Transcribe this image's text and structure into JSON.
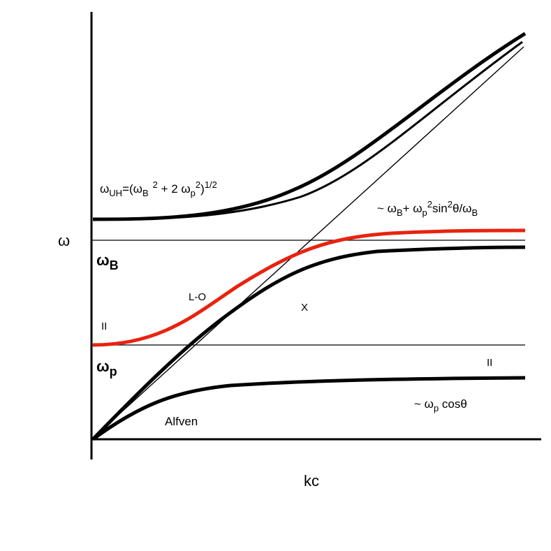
{
  "axes": {
    "y_label": "ω",
    "x_label": "kc"
  },
  "levels": {
    "omega_B": {
      "main": "ω",
      "sub": "B"
    },
    "omega_p": {
      "main": "ω",
      "sub": "p"
    }
  },
  "labels": {
    "upper_hybrid": {
      "a": "ω",
      "b": "UH",
      "c": "=(ω",
      "d": "B",
      "e": "2",
      "f": " + 2 ω",
      "g": "p",
      "h": "2",
      "i": ")",
      "j": "1/2"
    },
    "upper_right": {
      "a": "~ ω",
      "b": "B",
      "c": "+ ω",
      "d": "p",
      "e": "2",
      "f": "sin",
      "g": "2",
      "h": "θ/ω",
      "i": "B"
    },
    "lower_right": {
      "a": "~ ω",
      "b": "p",
      "c": " cosθ"
    },
    "l_o": "L-O",
    "x_mode": "X",
    "alfven": "Alfven",
    "parallel_left": "II",
    "parallel_right": "II"
  },
  "colors": {
    "curves": "#000000",
    "lo_branch": "#e8230f"
  }
}
